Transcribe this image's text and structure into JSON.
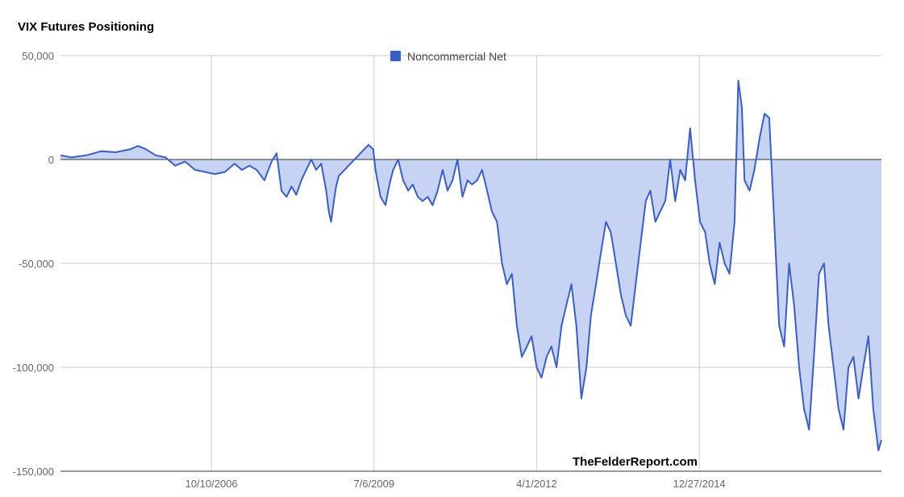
{
  "chart_data": {
    "type": "area",
    "title": "VIX Futures Positioning",
    "series": [
      {
        "name": "Noncommercial Net",
        "color": "#3a5ec9",
        "fill": "#c6d3f2",
        "x": [
          "2004-03-26",
          "2004-06-01",
          "2004-09-01",
          "2004-12-01",
          "2005-03-01",
          "2005-06-01",
          "2005-07-15",
          "2005-09-01",
          "2005-11-01",
          "2006-01-01",
          "2006-03-01",
          "2006-05-01",
          "2006-07-01",
          "2006-09-01",
          "2006-11-01",
          "2007-01-01",
          "2007-03-01",
          "2007-04-15",
          "2007-06-01",
          "2007-07-15",
          "2007-09-01",
          "2007-10-15",
          "2007-11-15",
          "2007-12-15",
          "2008-01-15",
          "2008-02-15",
          "2008-03-15",
          "2008-04-15",
          "2008-05-15",
          "2008-06-15",
          "2008-07-15",
          "2008-08-15",
          "2008-09-15",
          "2008-10-01",
          "2008-10-15",
          "2008-11-01",
          "2008-11-15",
          "2008-12-01",
          "2009-06-01",
          "2009-07-01",
          "2009-07-15",
          "2009-08-15",
          "2009-09-15",
          "2009-10-01",
          "2009-10-15",
          "2009-11-01",
          "2009-12-01",
          "2010-01-01",
          "2010-02-01",
          "2010-03-01",
          "2010-04-01",
          "2010-05-01",
          "2010-06-01",
          "2010-07-01",
          "2010-08-01",
          "2010-09-01",
          "2010-10-01",
          "2010-11-01",
          "2010-12-01",
          "2011-01-01",
          "2011-02-01",
          "2011-03-01",
          "2011-04-01",
          "2011-05-01",
          "2011-06-01",
          "2011-07-01",
          "2011-08-01",
          "2011-09-01",
          "2011-10-01",
          "2011-11-01",
          "2011-12-01",
          "2012-01-01",
          "2012-02-01",
          "2012-03-01",
          "2012-04-01",
          "2012-05-01",
          "2012-06-01",
          "2012-07-01",
          "2012-08-01",
          "2012-09-01",
          "2012-10-01",
          "2012-11-01",
          "2012-12-01",
          "2013-01-01",
          "2013-02-01",
          "2013-03-01",
          "2013-04-01",
          "2013-05-01",
          "2013-06-01",
          "2013-07-01",
          "2013-08-01",
          "2013-09-01",
          "2013-10-01",
          "2013-11-01",
          "2013-12-01",
          "2014-01-01",
          "2014-02-01",
          "2014-03-01",
          "2014-04-01",
          "2014-05-01",
          "2014-06-01",
          "2014-07-01",
          "2014-08-01",
          "2014-09-01",
          "2014-10-01",
          "2014-11-01",
          "2014-12-01",
          "2015-01-01",
          "2015-02-01",
          "2015-03-01",
          "2015-04-01",
          "2015-05-01",
          "2015-06-01",
          "2015-07-01",
          "2015-08-01",
          "2015-08-24",
          "2015-09-15",
          "2015-10-01",
          "2015-11-01",
          "2015-12-01",
          "2016-01-01",
          "2016-02-01",
          "2016-03-01",
          "2016-04-01",
          "2016-05-01",
          "2016-06-01",
          "2016-07-01",
          "2016-08-01",
          "2016-09-01",
          "2016-10-01",
          "2016-11-01",
          "2016-12-01",
          "2017-01-01",
          "2017-02-01",
          "2017-03-01",
          "2017-04-01",
          "2017-05-01",
          "2017-06-01",
          "2017-07-01",
          "2017-08-01",
          "2017-09-01",
          "2017-10-01",
          "2017-11-01",
          "2017-12-01",
          "2018-01-01",
          "2018-01-20"
        ],
        "y": [
          2000,
          1000,
          2000,
          4000,
          3500,
          5000,
          6500,
          5000,
          2000,
          1000,
          -3000,
          -1000,
          -5000,
          -6000,
          -7000,
          -6000,
          -2000,
          -5000,
          -3000,
          -5000,
          -10000,
          -1000,
          3000,
          -15000,
          -18000,
          -13000,
          -17000,
          -10000,
          -5000,
          0,
          -5000,
          -2000,
          -15000,
          -25000,
          -30000,
          -20000,
          -13000,
          -8000,
          7000,
          5000,
          -5000,
          -18000,
          -22000,
          -15000,
          -10000,
          -5000,
          0,
          -10000,
          -15000,
          -12000,
          -18000,
          -20000,
          -18000,
          -22000,
          -15000,
          -5000,
          -15000,
          -10000,
          0,
          -18000,
          -10000,
          -12000,
          -10000,
          -5000,
          -15000,
          -25000,
          -30000,
          -50000,
          -60000,
          -55000,
          -80000,
          -95000,
          -90000,
          -85000,
          -100000,
          -105000,
          -95000,
          -90000,
          -100000,
          -80000,
          -70000,
          -60000,
          -80000,
          -115000,
          -100000,
          -75000,
          -60000,
          -45000,
          -30000,
          -35000,
          -50000,
          -65000,
          -75000,
          -80000,
          -60000,
          -40000,
          -20000,
          -15000,
          -30000,
          -25000,
          -20000,
          0,
          -20000,
          -5000,
          -10000,
          15000,
          -10000,
          -30000,
          -35000,
          -50000,
          -60000,
          -40000,
          -50000,
          -55000,
          -30000,
          38000,
          25000,
          -10000,
          -15000,
          -5000,
          10000,
          22000,
          20000,
          -30000,
          -80000,
          -90000,
          -50000,
          -70000,
          -100000,
          -120000,
          -130000,
          -95000,
          -55000,
          -50000,
          -80000,
          -100000,
          -120000,
          -130000,
          -100000,
          -95000,
          -115000,
          -100000,
          -85000,
          -120000,
          -140000,
          -135000
        ],
        "ylim": [
          -150000,
          50000
        ]
      }
    ],
    "y_ticks": [
      50000,
      0,
      -50000,
      -100000,
      -150000
    ],
    "y_tick_labels": [
      "50,000",
      "0",
      "-50,000",
      "-100,000",
      "-150,000"
    ],
    "x_ticks": [
      "2006-10-10",
      "2009-07-06",
      "2012-04-01",
      "2014-12-27"
    ],
    "x_tick_labels": [
      "10/10/2006",
      "7/6/2009",
      "4/1/2012",
      "12/27/2014"
    ],
    "x_range": [
      "2004-03-26",
      "2018-01-20"
    ],
    "grid": true,
    "legend_position": "top",
    "watermark": "TheFelderReport.com"
  }
}
